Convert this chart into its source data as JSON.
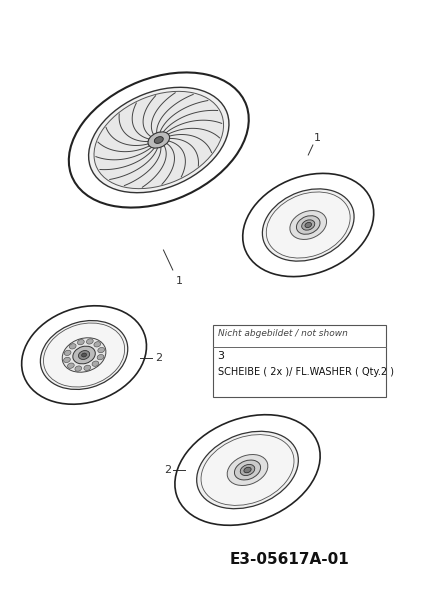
{
  "bg_color": "#ffffff",
  "text_color": "#333333",
  "dark_color": "#222222",
  "mid_color": "#666666",
  "light_color": "#cccccc",
  "vlight_color": "#eeeeee",
  "title_code": "E3-05617A-01",
  "table_header": "Nicht abgebildet / not shown",
  "table_row_num": "3",
  "table_row_desc": "SCHEIBE ( 2x )/ FL.WASHER ( Qty.2 )",
  "label1": "1",
  "label2": "2"
}
